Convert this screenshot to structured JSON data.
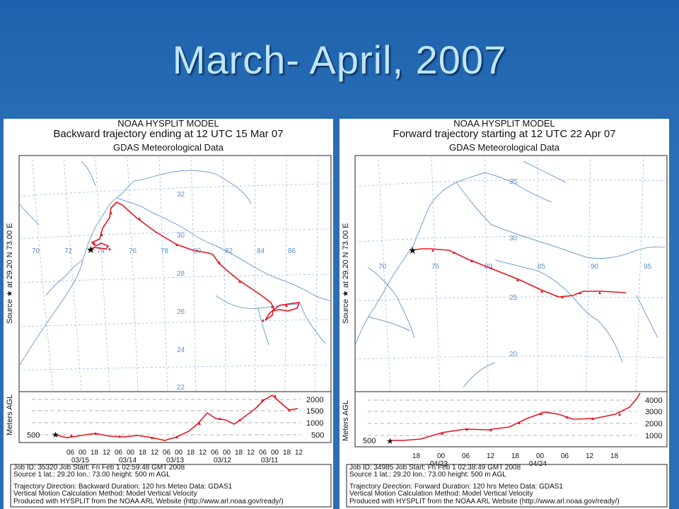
{
  "slide": {
    "title": "March- April, 2007"
  },
  "colors": {
    "background": "#2a6fb6",
    "title": "#bfe6ff",
    "trajectory": "#e8141e",
    "map_lines": "#7aaad8"
  },
  "left_panel": {
    "model": "NOAA HYSPLIT MODEL",
    "title": "Backward trajectory ending at 12 UTC 15 Mar 07",
    "data_source": "GDAS Meteorological Data",
    "source_axis_label": "Source ★ at   29.20 N   73.00 E",
    "y_axis_label": "Meters AGL",
    "lon_labels": [
      "70",
      "72",
      "74",
      "76",
      "78",
      "80",
      "82",
      "84",
      "86"
    ],
    "lat_labels": [
      "32",
      "30",
      "28",
      "26",
      "24",
      "22"
    ],
    "height_levels": [
      "2000",
      "1500",
      "1000",
      "500"
    ],
    "height_left_label": "500",
    "time_ticks": [
      "06",
      "00",
      "18",
      "12",
      "06",
      "00",
      "18",
      "12",
      "06",
      "00",
      "18",
      "12",
      "06",
      "00",
      "18",
      "12",
      "06",
      "00",
      "18",
      "12"
    ],
    "date_labels": [
      "03/15",
      "03/14",
      "03/13",
      "03/12",
      "03/11"
    ],
    "meta": {
      "line1": "Job ID: 35320      Job Start: Fri Feb  1 02:59:48 GMT 2008",
      "line2": "Source 1      lat.: 29.20   lon.: 73.00      height: 500 m AGL",
      "line3": "Trajectory Direction: Backward     Duration: 120 hrs     Meteo Data: GDAS1",
      "line4": "Vertical Motion Calculation Method: Model Vertical Velocity",
      "line5": "Produced with HYSPLIT from the NOAA ARL Website (http://www.arl.noaa.gov/ready/)"
    },
    "height_profile_m": [
      500,
      450,
      480,
      430,
      400,
      350,
      500,
      1500,
      1200,
      1300,
      900,
      1500,
      2100,
      2100,
      1500
    ]
  },
  "right_panel": {
    "model": "NOAA HYSPLIT MODEL",
    "title": "Forward trajectory starting at 12 UTC 22 Apr 07",
    "data_source": "GDAS Meteorological Data",
    "source_axis_label": "Source ★ at   29.20 N   73.00 E",
    "y_axis_label": "Meters AGL",
    "lon_labels": [
      "70",
      "75",
      "80",
      "85",
      "90",
      "95"
    ],
    "lat_labels": [
      "35",
      "30",
      "25",
      "20"
    ],
    "height_levels": [
      "4000",
      "3000",
      "2000",
      "1000"
    ],
    "height_left_label": "500",
    "time_ticks": [
      "18",
      "00",
      "06",
      "12",
      "18",
      "00",
      "06",
      "12",
      "18"
    ],
    "date_labels": [
      "04/23",
      "04/24"
    ],
    "meta": {
      "line1": "Job ID: 34985      Job Start: Fri Feb  1 02:38:49 GMT 2008",
      "line2": "Source 1      lat.: 29.20   lon.: 73.00      height: 500 m AGL",
      "line3": "Trajectory Direction: Forward     Duration: 120 hrs     Meteo Data: GDAS1",
      "line4": "Vertical Motion Calculation Method: Model Vertical Velocity",
      "line5": "Produced with HYSPLIT from the NOAA ARL Website (http://www.arl.noaa.gov/ready/)"
    },
    "height_profile_m": [
      500,
      550,
      900,
      1200,
      1300,
      1500,
      2800,
      2500,
      2200,
      2200,
      3500,
      4300
    ]
  }
}
